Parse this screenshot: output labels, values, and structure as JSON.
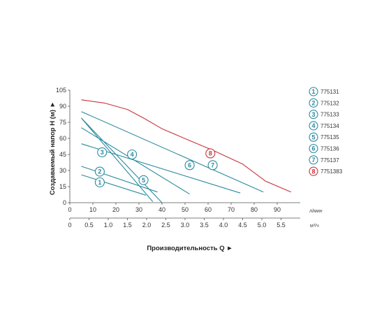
{
  "chart_data": {
    "type": "line",
    "xlabel": "Производительность Q ►",
    "ylabel": "Создаваемый напор Н (м) ►",
    "x_unit_lmin": "л/мин",
    "x_unit_m3h": "м³/ч",
    "xlim_lmin": [
      0,
      100
    ],
    "xticks_lmin": [
      "0",
      "10",
      "20",
      "30",
      "40",
      "50",
      "60",
      "70",
      "80",
      "90"
    ],
    "xlim_m3h": [
      0,
      6
    ],
    "xticks_m3h": [
      "0",
      "0.5",
      "1.0",
      "1.5",
      "2.0",
      "2.5",
      "3.0",
      "3.5",
      "4.0",
      "4.5",
      "5.0",
      "5.5"
    ],
    "ylim": [
      0,
      105
    ],
    "yticks": [
      "0",
      "15",
      "30",
      "45",
      "60",
      "75",
      "90",
      "105"
    ],
    "grid": false,
    "legend_position": "right",
    "series": [
      {
        "name": "775131",
        "badge": "1",
        "color": "#2a8a9e",
        "points": [
          [
            5,
            26
          ],
          [
            33,
            7
          ]
        ],
        "label_at": [
          13,
          19
        ]
      },
      {
        "name": "775132",
        "badge": "2",
        "color": "#2a8a9e",
        "points": [
          [
            5,
            34
          ],
          [
            38,
            10
          ]
        ],
        "label_at": [
          13,
          29
        ]
      },
      {
        "name": "775133",
        "badge": "3",
        "color": "#2a8a9e",
        "points": [
          [
            5,
            79
          ],
          [
            40,
            0
          ]
        ],
        "label_at": [
          14,
          47
        ]
      },
      {
        "name": "775134",
        "badge": "4",
        "color": "#2a8a9e",
        "points": [
          [
            5,
            70
          ],
          [
            52,
            8
          ]
        ],
        "label_at": [
          27,
          45
        ]
      },
      {
        "name": "775135",
        "badge": "5",
        "color": "#2a8a9e",
        "points": [
          [
            5,
            79
          ],
          [
            36,
            1
          ]
        ],
        "label_at": [
          32,
          21
        ]
      },
      {
        "name": "775136",
        "badge": "6",
        "color": "#2a8a9e",
        "points": [
          [
            5,
            55
          ],
          [
            74,
            9
          ]
        ],
        "label_at": [
          52,
          35
        ]
      },
      {
        "name": "775137",
        "badge": "7",
        "color": "#2a8a9e",
        "points": [
          [
            5,
            85
          ],
          [
            84,
            10
          ]
        ],
        "label_at": [
          62,
          35
        ]
      },
      {
        "name": "7751383",
        "badge": "8",
        "color": "#c9343a",
        "points": [
          [
            5,
            96
          ],
          [
            15,
            93
          ],
          [
            25,
            87
          ],
          [
            32,
            79
          ],
          [
            40,
            69
          ],
          [
            52,
            58
          ],
          [
            62,
            49
          ],
          [
            75,
            36
          ],
          [
            85,
            20
          ],
          [
            96,
            10
          ]
        ],
        "label_at": [
          61,
          46
        ]
      }
    ]
  }
}
